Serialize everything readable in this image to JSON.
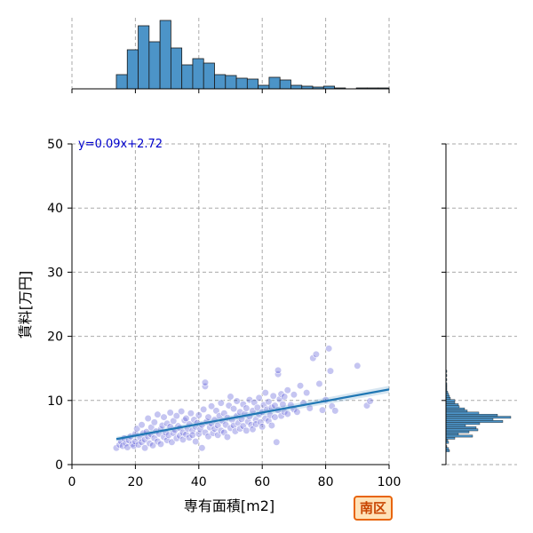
{
  "chart_data": {
    "type": "scatter",
    "xlabel": "専有面積[m2]",
    "ylabel": "賃料[万円]",
    "xlim": [
      0,
      100
    ],
    "ylim": [
      0,
      50
    ],
    "xticks": [
      0,
      20,
      40,
      60,
      80,
      100
    ],
    "yticks": [
      0,
      10,
      20,
      30,
      40,
      50
    ],
    "grid": true,
    "annotation": "y=0.09x+2.72",
    "region_badge": "南区",
    "regression": {
      "slope": 0.09,
      "intercept": 2.72,
      "x_range": [
        14,
        100
      ]
    },
    "series": [
      {
        "points": [
          [
            14,
            2.6
          ],
          [
            15,
            3.1
          ],
          [
            15.5,
            3.6
          ],
          [
            16,
            2.9
          ],
          [
            16.5,
            4.1
          ],
          [
            17,
            3.3
          ],
          [
            17.5,
            2.7
          ],
          [
            18,
            3.8
          ],
          [
            18.5,
            4.4
          ],
          [
            19,
            3.2
          ],
          [
            19.5,
            2.9
          ],
          [
            20,
            3.6
          ],
          [
            20,
            4.8
          ],
          [
            20.5,
            5.6
          ],
          [
            21,
            3.1
          ],
          [
            21.5,
            4.2
          ],
          [
            22,
            3.5
          ],
          [
            22,
            6.2
          ],
          [
            22.5,
            4.9
          ],
          [
            23,
            2.6
          ],
          [
            23,
            3.9
          ],
          [
            23.5,
            5.1
          ],
          [
            24,
            4.4
          ],
          [
            24,
            7.2
          ],
          [
            24.5,
            3.3
          ],
          [
            25,
            4.7
          ],
          [
            25,
            5.8
          ],
          [
            25.5,
            3.0
          ],
          [
            26,
            4.1
          ],
          [
            26,
            6.6
          ],
          [
            26.5,
            5.2
          ],
          [
            27,
            3.6
          ],
          [
            27,
            7.8
          ],
          [
            27.5,
            4.8
          ],
          [
            28,
            5.5
          ],
          [
            28,
            3.2
          ],
          [
            28.5,
            6.1
          ],
          [
            29,
            4.3
          ],
          [
            29,
            7.4
          ],
          [
            29.5,
            5.0
          ],
          [
            30,
            3.8
          ],
          [
            30,
            6.4
          ],
          [
            30.5,
            4.6
          ],
          [
            31,
            5.9
          ],
          [
            31,
            8.1
          ],
          [
            31.5,
            3.5
          ],
          [
            32,
            4.9
          ],
          [
            32,
            6.8
          ],
          [
            32.5,
            5.4
          ],
          [
            33,
            4.1
          ],
          [
            33,
            7.6
          ],
          [
            33.5,
            6.0
          ],
          [
            34,
            4.5
          ],
          [
            34,
            5.7
          ],
          [
            34.5,
            8.3
          ],
          [
            35,
            5.0
          ],
          [
            35,
            3.9
          ],
          [
            35.5,
            6.9
          ],
          [
            36,
            4.7
          ],
          [
            36,
            7.2
          ],
          [
            36.5,
            5.6
          ],
          [
            37,
            4.2
          ],
          [
            37,
            6.3
          ],
          [
            37.5,
            8.0
          ],
          [
            38,
            5.3
          ],
          [
            38,
            4.6
          ],
          [
            38.5,
            7.0
          ],
          [
            39,
            5.9
          ],
          [
            39,
            3.6
          ],
          [
            39.5,
            6.5
          ],
          [
            40,
            4.8
          ],
          [
            40,
            7.7
          ],
          [
            40.5,
            5.5
          ],
          [
            41,
            6.2
          ],
          [
            41,
            2.6
          ],
          [
            41.5,
            8.6
          ],
          [
            42,
            5.0
          ],
          [
            42,
            12.2
          ],
          [
            42,
            12.8
          ],
          [
            42.5,
            6.7
          ],
          [
            43,
            4.4
          ],
          [
            43,
            7.4
          ],
          [
            43.5,
            5.8
          ],
          [
            44,
            6.4
          ],
          [
            44,
            9.1
          ],
          [
            44.5,
            4.9
          ],
          [
            45,
            7.0
          ],
          [
            45,
            5.6
          ],
          [
            45.5,
            8.4
          ],
          [
            46,
            6.1
          ],
          [
            46,
            4.6
          ],
          [
            46.5,
            7.6
          ],
          [
            47,
            5.3
          ],
          [
            47,
            9.6
          ],
          [
            47.5,
            6.8
          ],
          [
            48,
            5.0
          ],
          [
            48,
            8.0
          ],
          [
            48.5,
            6.2
          ],
          [
            49,
            7.3
          ],
          [
            49,
            4.3
          ],
          [
            49.5,
            9.2
          ],
          [
            50,
            5.7
          ],
          [
            50,
            10.6
          ],
          [
            50.5,
            7.0
          ],
          [
            51,
            6.1
          ],
          [
            51,
            8.7
          ],
          [
            51.5,
            5.2
          ],
          [
            52,
            7.6
          ],
          [
            52,
            9.9
          ],
          [
            52.5,
            6.5
          ],
          [
            53,
            5.6
          ],
          [
            53,
            8.2
          ],
          [
            53.5,
            7.1
          ],
          [
            54,
            6.0
          ],
          [
            54,
            9.4
          ],
          [
            54.5,
            7.9
          ],
          [
            55,
            5.3
          ],
          [
            55,
            8.8
          ],
          [
            55.5,
            6.7
          ],
          [
            56,
            7.5
          ],
          [
            56,
            10.1
          ],
          [
            56.5,
            6.2
          ],
          [
            57,
            8.4
          ],
          [
            57,
            5.5
          ],
          [
            57.5,
            9.7
          ],
          [
            58,
            7.0
          ],
          [
            58,
            6.3
          ],
          [
            58.5,
            8.9
          ],
          [
            59,
            7.8
          ],
          [
            59,
            10.4
          ],
          [
            59.5,
            6.6
          ],
          [
            60,
            8.2
          ],
          [
            60,
            5.9
          ],
          [
            60.5,
            9.3
          ],
          [
            61,
            7.2
          ],
          [
            61,
            11.2
          ],
          [
            61.5,
            8.6
          ],
          [
            62,
            6.8
          ],
          [
            62,
            9.8
          ],
          [
            62.5,
            7.7
          ],
          [
            63,
            8.9
          ],
          [
            63,
            6.1
          ],
          [
            63.5,
            10.7
          ],
          [
            64,
            7.4
          ],
          [
            64,
            9.2
          ],
          [
            64.5,
            3.5
          ],
          [
            65,
            14.1
          ],
          [
            65,
            14.7
          ],
          [
            65,
            8.5
          ],
          [
            65.5,
            10.2
          ],
          [
            66,
            7.6
          ],
          [
            66,
            11.0
          ],
          [
            66.5,
            9.4
          ],
          [
            67,
            8.2
          ],
          [
            67,
            10.6
          ],
          [
            68,
            7.9
          ],
          [
            68,
            11.6
          ],
          [
            69,
            9.3
          ],
          [
            70,
            8.6
          ],
          [
            70,
            10.9
          ],
          [
            71,
            8.2
          ],
          [
            72,
            12.3
          ],
          [
            73,
            9.6
          ],
          [
            74,
            11.2
          ],
          [
            75,
            8.8
          ],
          [
            76,
            16.6
          ],
          [
            77,
            17.2
          ],
          [
            78,
            12.6
          ],
          [
            79,
            8.5
          ],
          [
            80,
            10.1
          ],
          [
            81,
            18.1
          ],
          [
            81.5,
            14.6
          ],
          [
            82,
            9.1
          ],
          [
            83,
            8.4
          ],
          [
            90,
            15.4
          ],
          [
            93,
            9.2
          ],
          [
            94,
            9.9
          ]
        ]
      }
    ],
    "x_histogram": {
      "bin_start": 14,
      "bin_width": 3.44,
      "counts": [
        16,
        44,
        71,
        53,
        77,
        46,
        27,
        34,
        29,
        16,
        15,
        12,
        11,
        4,
        13,
        10,
        4,
        3,
        2,
        3,
        1,
        0,
        1,
        1,
        1
      ],
      "count_max": 80
    },
    "y_histogram": {
      "bin_start": 2.0,
      "bin_width": 0.326,
      "counts": [
        4,
        3,
        1,
        0,
        3,
        2,
        10,
        30,
        14,
        26,
        36,
        34,
        22,
        38,
        64,
        53,
        73,
        58,
        37,
        24,
        21,
        15,
        14,
        10,
        10,
        5,
        4,
        3,
        2,
        1,
        1,
        1,
        1,
        0,
        1,
        0,
        1,
        0,
        1
      ],
      "count_max": 80
    }
  }
}
